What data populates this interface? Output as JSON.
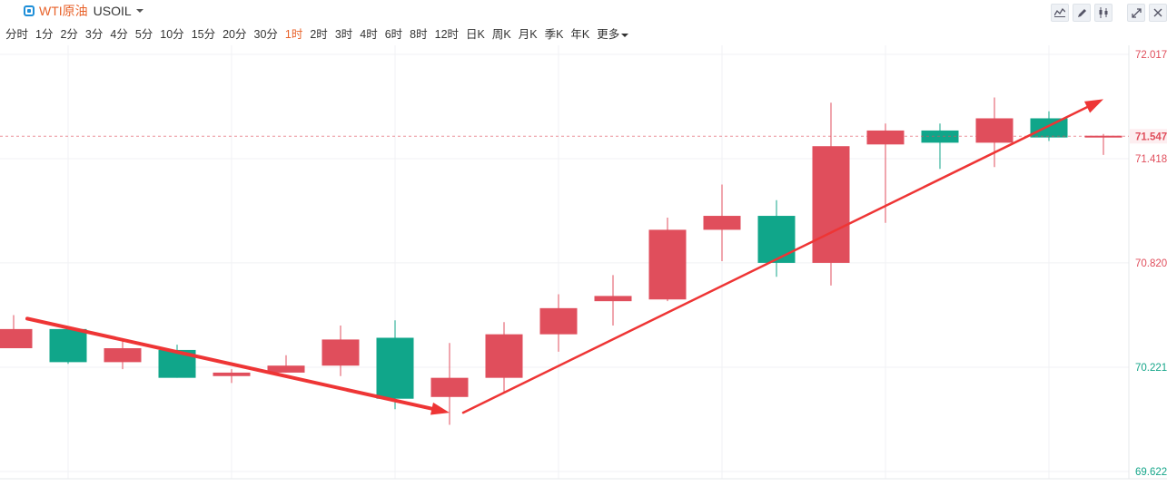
{
  "header": {
    "symbol_name": "WTI原油",
    "symbol_code": "USOIL",
    "tools": [
      {
        "icon": "line-chart-icon"
      },
      {
        "icon": "pencil-icon"
      },
      {
        "icon": "candlestick-icon"
      },
      {
        "icon": "expand-icon"
      },
      {
        "icon": "close-icon"
      }
    ]
  },
  "periods": [
    {
      "label": "分时",
      "active": false
    },
    {
      "label": "1分",
      "active": false
    },
    {
      "label": "2分",
      "active": false
    },
    {
      "label": "3分",
      "active": false
    },
    {
      "label": "4分",
      "active": false
    },
    {
      "label": "5分",
      "active": false
    },
    {
      "label": "10分",
      "active": false
    },
    {
      "label": "15分",
      "active": false
    },
    {
      "label": "20分",
      "active": false
    },
    {
      "label": "30分",
      "active": false
    },
    {
      "label": "1时",
      "active": true
    },
    {
      "label": "2时",
      "active": false
    },
    {
      "label": "3时",
      "active": false
    },
    {
      "label": "4时",
      "active": false
    },
    {
      "label": "6时",
      "active": false
    },
    {
      "label": "8时",
      "active": false
    },
    {
      "label": "12时",
      "active": false
    },
    {
      "label": "日K",
      "active": false
    },
    {
      "label": "周K",
      "active": false
    },
    {
      "label": "月K",
      "active": false
    },
    {
      "label": "季K",
      "active": false
    },
    {
      "label": "年K",
      "active": false
    }
  ],
  "more_label": "更多",
  "chart_data": {
    "type": "candlestick",
    "ylim": [
      69.622,
      72.017
    ],
    "y_ticks": [
      {
        "value": 72.017,
        "label": "72.017",
        "color": "#e04e5c"
      },
      {
        "value": 71.418,
        "label": "71.418",
        "color": "#e04e5c"
      },
      {
        "value": 70.82,
        "label": "70.820",
        "color": "#e04e5c"
      },
      {
        "value": 70.221,
        "label": "70.221",
        "color": "#14a589"
      },
      {
        "value": 69.622,
        "label": "69.622",
        "color": "#14a589"
      }
    ],
    "current_price": {
      "value": 71.547,
      "label": "71.547"
    },
    "colors": {
      "up": "#e04e5c",
      "down": "#10a68a",
      "arrow": "#ee3535",
      "current": "#e04e5c"
    },
    "candles": [
      {
        "open": 70.33,
        "close": 70.44,
        "high": 70.52,
        "low": 70.33
      },
      {
        "open": 70.44,
        "close": 70.25,
        "high": 70.44,
        "low": 70.24
      },
      {
        "open": 70.25,
        "close": 70.33,
        "high": 70.37,
        "low": 70.21
      },
      {
        "open": 70.32,
        "close": 70.16,
        "high": 70.35,
        "low": 70.16
      },
      {
        "open": 70.17,
        "close": 70.19,
        "high": 70.21,
        "low": 70.13
      },
      {
        "open": 70.19,
        "close": 70.23,
        "high": 70.29,
        "low": 70.19
      },
      {
        "open": 70.23,
        "close": 70.38,
        "high": 70.46,
        "low": 70.17
      },
      {
        "open": 70.39,
        "close": 70.04,
        "high": 70.49,
        "low": 69.98
      },
      {
        "open": 70.05,
        "close": 70.16,
        "high": 70.36,
        "low": 69.89
      },
      {
        "open": 70.16,
        "close": 70.41,
        "high": 70.48,
        "low": 70.08
      },
      {
        "open": 70.41,
        "close": 70.56,
        "high": 70.64,
        "low": 70.31
      },
      {
        "open": 70.6,
        "close": 70.63,
        "high": 70.75,
        "low": 70.46
      },
      {
        "open": 70.61,
        "close": 71.01,
        "high": 71.08,
        "low": 70.6
      },
      {
        "open": 71.01,
        "close": 71.09,
        "high": 71.27,
        "low": 70.83
      },
      {
        "open": 71.09,
        "close": 70.82,
        "high": 71.18,
        "low": 70.74
      },
      {
        "open": 70.82,
        "close": 71.49,
        "high": 71.74,
        "low": 70.69
      },
      {
        "open": 71.5,
        "close": 71.58,
        "high": 71.62,
        "low": 71.05
      },
      {
        "open": 71.58,
        "close": 71.51,
        "high": 71.62,
        "low": 71.36
      },
      {
        "open": 71.51,
        "close": 71.65,
        "high": 71.77,
        "low": 71.37
      },
      {
        "open": 71.65,
        "close": 71.54,
        "high": 71.69,
        "low": 71.52
      },
      {
        "open": 71.54,
        "close": 71.55,
        "high": 71.56,
        "low": 71.44
      }
    ],
    "arrows": [
      {
        "from": {
          "candle": 0.25,
          "price": 70.5
        },
        "to": {
          "candle": 8.0,
          "price": 69.96
        },
        "width": 4
      },
      {
        "from": {
          "candle": 8.25,
          "price": 69.96
        },
        "to": {
          "candle": 20.0,
          "price": 71.76
        },
        "width": 2.5
      }
    ]
  }
}
